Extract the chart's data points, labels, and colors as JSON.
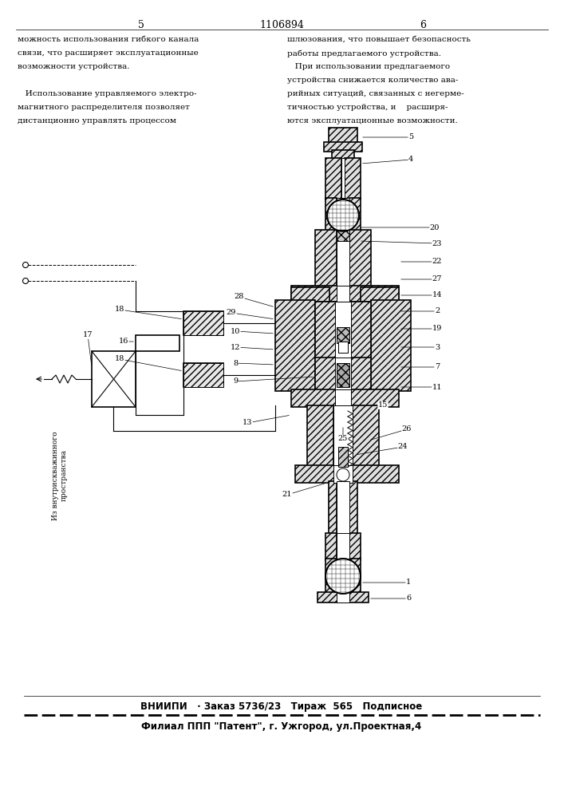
{
  "page_number_left": "5",
  "patent_number": "1106894",
  "page_number_right": "6",
  "text_left_col": [
    "можность использования гибкого канала",
    "связи, что расширяет эксплуатационные",
    "возможности устройства.",
    "",
    "   Использование управляемого электро-",
    "магнитного распределителя позволяет",
    "дистанционно управлять процессом"
  ],
  "text_right_col": [
    "шлюзования, что повышает безопасность",
    "работы предлагаемого устройства.",
    "   При использовании предлагаемого",
    "устройства снижается количество ава-",
    "рийных ситуаций, связанных с негерме-",
    "тичностью устройства, и    расширя-",
    "ются эксплуатационные возможности."
  ],
  "footer_line1": "ВНИИПИ   · Заказ 5736/23   Тираж  565   Подписное",
  "footer_line2": "Филиал ППП \"Патент\", г. Ужгород, ул.Проектная,4",
  "bg_color": "#ffffff",
  "text_color": "#000000"
}
